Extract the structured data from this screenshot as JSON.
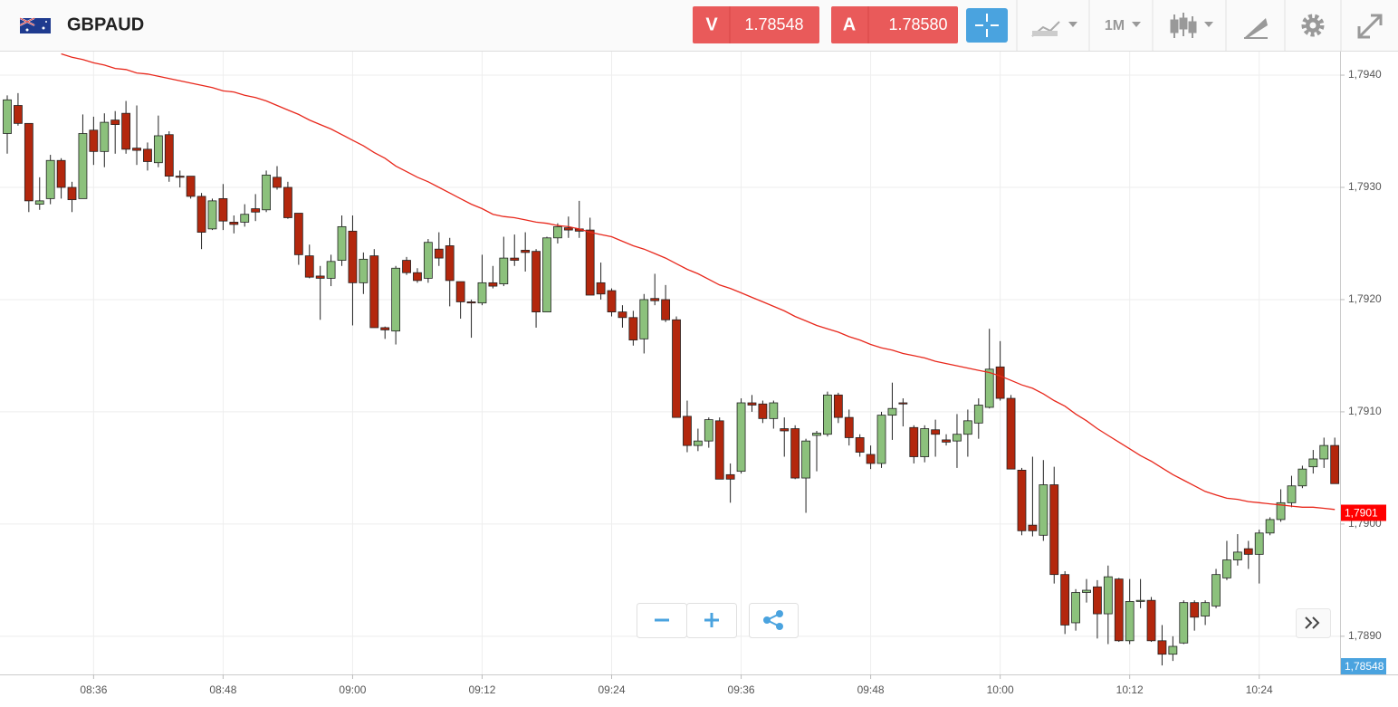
{
  "header": {
    "symbol": "GBPAUD",
    "sell_label": "V",
    "sell_price": "1.78548",
    "buy_label": "A",
    "buy_price": "1.78580",
    "timeframe": "1M"
  },
  "chart_data": {
    "type": "candlestick",
    "categories": [
      null,
      null,
      null,
      null,
      null,
      null,
      null,
      null,
      "08:36",
      null,
      null,
      null,
      null,
      null,
      null,
      null,
      null,
      null,
      null,
      null,
      "08:48",
      null,
      null,
      null,
      null,
      null,
      null,
      null,
      null,
      null,
      null,
      null,
      "09:00",
      null,
      null,
      null,
      null,
      null,
      null,
      null,
      null,
      null,
      null,
      null,
      "09:12",
      null,
      null,
      null,
      null,
      null,
      null,
      null,
      null,
      null,
      null,
      null,
      "09:24",
      null,
      null,
      null,
      null,
      null,
      null,
      null,
      null,
      null,
      null,
      null,
      "09:36",
      null,
      null,
      null,
      null,
      null,
      null,
      null,
      null,
      null,
      null,
      null,
      "09:48",
      null,
      null,
      null,
      null,
      null,
      null,
      null,
      null,
      null,
      null,
      null,
      "10:00",
      null,
      null,
      null,
      null,
      null,
      null,
      null,
      null,
      null,
      null,
      null,
      "10:12",
      null,
      null,
      null,
      null,
      null,
      null,
      null,
      null,
      null,
      null,
      null,
      "10:24",
      null,
      null,
      null,
      null,
      null,
      null,
      null
    ],
    "open": [
      1.79348,
      1.79373,
      1.79357,
      1.79285,
      1.7929,
      1.79324,
      1.793,
      1.7929,
      1.79351,
      1.79332,
      1.7936,
      1.79366,
      1.79335,
      1.79334,
      1.79322,
      1.79347,
      1.7931,
      1.7931,
      1.79292,
      1.79263,
      1.7929,
      1.79269,
      1.79269,
      1.79281,
      1.7928,
      1.79309,
      1.793,
      1.79277,
      1.79239,
      1.79221,
      1.79219,
      1.79235,
      1.79261,
      1.79215,
      1.79239,
      1.79175,
      1.79172,
      1.79235,
      1.79224,
      1.79219,
      1.79245,
      1.79248,
      1.79216,
      1.79198,
      1.79197,
      1.79215,
      1.79214,
      1.79237,
      1.79244,
      1.79243,
      1.79189,
      1.79255,
      1.79264,
      1.79263,
      1.79262,
      1.79215,
      1.79208,
      1.79189,
      1.79184,
      1.79165,
      1.79201,
      1.792,
      1.79182,
      1.79096,
      1.7907,
      1.79074,
      1.79092,
      1.79044,
      1.79047,
      1.79108,
      1.79107,
      1.79094,
      1.79085,
      1.79085,
      1.79041,
      1.79079,
      1.7908,
      1.79115,
      1.79095,
      1.79077,
      1.79062,
      1.79054,
      1.79097,
      1.79108,
      1.79086,
      1.7906,
      1.79084,
      1.79075,
      1.79074,
      1.7908,
      1.7909,
      1.79104,
      1.7914,
      1.79112,
      1.79048,
      1.78999,
      1.7899,
      1.79035,
      1.78955,
      1.78912,
      1.78939,
      1.78944,
      1.7892,
      1.78951,
      1.78896,
      1.78931,
      1.78932,
      1.78896,
      1.78884,
      1.78894,
      1.7893,
      1.78918,
      1.78927,
      1.78952,
      1.78968,
      1.78978,
      1.78973,
      1.78992,
      1.79004,
      1.79019,
      1.79034,
      1.79051,
      1.79058,
      1.7907
    ],
    "high": [
      1.79382,
      1.79384,
      1.79357,
      1.79309,
      1.79329,
      1.79326,
      1.79305,
      1.79365,
      1.79363,
      1.79366,
      1.79368,
      1.79377,
      1.79373,
      1.7934,
      1.79364,
      1.7935,
      1.79315,
      1.7931,
      1.79295,
      1.7929,
      1.79303,
      1.79275,
      1.79285,
      1.79294,
      1.79315,
      1.79319,
      1.79305,
      1.79277,
      1.79249,
      1.7923,
      1.7924,
      1.79275,
      1.79275,
      1.79242,
      1.79245,
      1.79176,
      1.7923,
      1.79238,
      1.79228,
      1.79254,
      1.7926,
      1.79255,
      1.79216,
      1.792,
      1.7924,
      1.7923,
      1.79256,
      1.79258,
      1.7926,
      1.79245,
      1.79256,
      1.79268,
      1.79274,
      1.79288,
      1.79273,
      1.79233,
      1.7921,
      1.79195,
      1.7919,
      1.79205,
      1.79223,
      1.79213,
      1.79185,
      1.7911,
      1.79085,
      1.79095,
      1.79095,
      1.79054,
      1.79112,
      1.79115,
      1.7911,
      1.7911,
      1.79095,
      1.79088,
      1.79076,
      1.79083,
      1.79118,
      1.79117,
      1.79102,
      1.7908,
      1.7907,
      1.791,
      1.79126,
      1.79112,
      1.79088,
      1.79088,
      1.79093,
      1.7908,
      1.79098,
      1.79102,
      1.79112,
      1.79174,
      1.79163,
      1.79115,
      1.7905,
      1.7906,
      1.79057,
      1.79051,
      1.78958,
      1.78942,
      1.78951,
      1.7895,
      1.78963,
      1.78952,
      1.78951,
      1.78951,
      1.78935,
      1.7891,
      1.789,
      1.78932,
      1.78932,
      1.78932,
      1.7896,
      1.78985,
      1.78991,
      1.78985,
      1.78995,
      1.79006,
      1.79031,
      1.79043,
      1.79052,
      1.79066,
      1.79077,
      1.79077
    ],
    "low": [
      1.7933,
      1.79355,
      1.79278,
      1.7928,
      1.79285,
      1.7929,
      1.79278,
      1.7929,
      1.7932,
      1.79318,
      1.7933,
      1.7933,
      1.7932,
      1.79315,
      1.79318,
      1.79305,
      1.793,
      1.7929,
      1.79245,
      1.79262,
      1.79262,
      1.79259,
      1.79265,
      1.7927,
      1.79278,
      1.79298,
      1.79272,
      1.79231,
      1.79219,
      1.79182,
      1.79212,
      1.7923,
      1.79177,
      1.79205,
      1.79175,
      1.79165,
      1.7916,
      1.79222,
      1.79215,
      1.79215,
      1.7923,
      1.79194,
      1.79183,
      1.79166,
      1.79195,
      1.7921,
      1.79212,
      1.7923,
      1.79225,
      1.79175,
      1.79189,
      1.7925,
      1.79255,
      1.79255,
      1.79204,
      1.792,
      1.79185,
      1.79175,
      1.79159,
      1.79152,
      1.79195,
      1.7918,
      1.79095,
      1.79064,
      1.79065,
      1.79068,
      1.7904,
      1.79019,
      1.79045,
      1.791,
      1.7909,
      1.79085,
      1.7906,
      1.7904,
      1.7901,
      1.79047,
      1.79078,
      1.7909,
      1.7907,
      1.7906,
      1.79049,
      1.7905,
      1.79075,
      1.79087,
      1.79054,
      1.79055,
      1.7906,
      1.7907,
      1.7905,
      1.7906,
      1.79076,
      1.79103,
      1.7911,
      1.79049,
      1.7899,
      1.78989,
      1.78985,
      1.78947,
      1.78902,
      1.78905,
      1.7893,
      1.78898,
      1.78893,
      1.78895,
      1.78893,
      1.78925,
      1.78895,
      1.78874,
      1.78878,
      1.78893,
      1.78905,
      1.7891,
      1.78925,
      1.7895,
      1.78963,
      1.7896,
      1.78947,
      1.7899,
      1.79002,
      1.79015,
      1.79032,
      1.79045,
      1.7905,
      1.79036
    ],
    "close": [
      1.79378,
      1.79357,
      1.79288,
      1.79288,
      1.79324,
      1.793,
      1.79289,
      1.79348,
      1.79332,
      1.79358,
      1.79356,
      1.79334,
      1.79333,
      1.79323,
      1.79346,
      1.7931,
      1.79309,
      1.79292,
      1.7926,
      1.79288,
      1.7927,
      1.79267,
      1.79276,
      1.79278,
      1.79311,
      1.793,
      1.79273,
      1.7924,
      1.7922,
      1.79219,
      1.79234,
      1.79265,
      1.79215,
      1.79236,
      1.79175,
      1.79173,
      1.79228,
      1.79224,
      1.79217,
      1.79251,
      1.79237,
      1.79217,
      1.79198,
      1.79197,
      1.79215,
      1.79212,
      1.79237,
      1.79235,
      1.79242,
      1.79189,
      1.79255,
      1.79265,
      1.79262,
      1.79261,
      1.79204,
      1.79205,
      1.79189,
      1.79184,
      1.79164,
      1.792,
      1.79199,
      1.79182,
      1.79095,
      1.7907,
      1.79074,
      1.79093,
      1.7904,
      1.7904,
      1.79108,
      1.79106,
      1.79094,
      1.79108,
      1.79083,
      1.79041,
      1.79074,
      1.79081,
      1.79115,
      1.79095,
      1.79077,
      1.79064,
      1.79054,
      1.79097,
      1.79103,
      1.79107,
      1.7906,
      1.79085,
      1.7908,
      1.79073,
      1.7908,
      1.79092,
      1.79106,
      1.79138,
      1.79112,
      1.79049,
      1.78994,
      1.78994,
      1.79035,
      1.78955,
      1.7891,
      1.78939,
      1.78941,
      1.7892,
      1.78953,
      1.78896,
      1.78931,
      1.78932,
      1.78896,
      1.78884,
      1.78891,
      1.7893,
      1.78917,
      1.7893,
      1.78955,
      1.78968,
      1.78975,
      1.78973,
      1.78992,
      1.79004,
      1.79019,
      1.79034,
      1.79049,
      1.79058,
      1.7907,
      1.79036
    ],
    "up_color": "#8cc17c",
    "down_color": "#b3270d",
    "ma": {
      "color": "#e8281c",
      "values": [
        null,
        null,
        null,
        null,
        null,
        1.79419,
        1.79416,
        1.79414,
        1.79411,
        1.79409,
        1.79406,
        1.79405,
        1.79402,
        1.79401,
        1.79399,
        1.79397,
        1.79395,
        1.79393,
        1.79391,
        1.79389,
        1.79386,
        1.79385,
        1.79382,
        1.7938,
        1.79377,
        1.79373,
        1.79369,
        1.79365,
        1.7936,
        1.79356,
        1.79352,
        1.79347,
        1.79342,
        1.79337,
        1.79331,
        1.79326,
        1.79319,
        1.79314,
        1.79309,
        1.79305,
        1.793,
        1.79295,
        1.7929,
        1.79285,
        1.79281,
        1.79276,
        1.79274,
        1.79273,
        1.79271,
        1.79269,
        1.79268,
        1.79266,
        1.79265,
        1.79263,
        1.7926,
        1.79258,
        1.79256,
        1.79252,
        1.79248,
        1.79245,
        1.79241,
        1.79237,
        1.79232,
        1.79227,
        1.79223,
        1.79218,
        1.79213,
        1.7921,
        1.79206,
        1.79202,
        1.79198,
        1.79194,
        1.7919,
        1.79185,
        1.79181,
        1.79177,
        1.79174,
        1.79171,
        1.79167,
        1.79164,
        1.7916,
        1.79157,
        1.79155,
        1.79152,
        1.7915,
        1.79148,
        1.79145,
        1.79143,
        1.79141,
        1.79139,
        1.79137,
        1.79135,
        1.79132,
        1.79128,
        1.79124,
        1.79121,
        1.79116,
        1.7911,
        1.79105,
        1.79098,
        1.79092,
        1.79085,
        1.79079,
        1.79073,
        1.79067,
        1.79061,
        1.79056,
        1.7905,
        1.79044,
        1.79039,
        1.79034,
        1.79029,
        1.79026,
        1.79023,
        1.79022,
        1.7902,
        1.79019,
        1.79018,
        1.79017,
        1.79016,
        1.79015,
        1.79015,
        1.79014,
        1.79013
      ]
    },
    "ylim": [
      1.78866,
      1.79421
    ],
    "yticks": [
      {
        "value": 1.789,
        "label": "1,7890"
      },
      {
        "value": 1.79,
        "label": "1,7900"
      },
      {
        "value": 1.791,
        "label": "1,7910"
      },
      {
        "value": 1.792,
        "label": "1,7920"
      },
      {
        "value": 1.793,
        "label": "1,7930"
      },
      {
        "value": 1.794,
        "label": "1,7940"
      }
    ],
    "grid": true,
    "price_tags": [
      {
        "value": 1.7901,
        "label": "1,7901",
        "color": "#ff0000"
      },
      {
        "value": 1.78548,
        "label": "1,78548",
        "color": "#4aa3df"
      }
    ]
  }
}
